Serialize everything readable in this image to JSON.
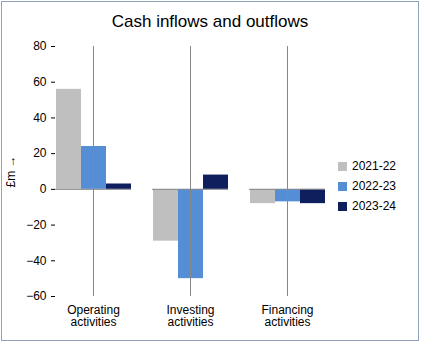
{
  "chart_data": {
    "type": "bar",
    "title": "Cash inflows and outflows",
    "ylabel": "£m",
    "categories": [
      "Operating activities",
      "Investing activities",
      "Financing activities"
    ],
    "series": [
      {
        "name": "2021-22",
        "color": "#BFBFBF",
        "values": [
          56,
          -29,
          -8
        ]
      },
      {
        "name": "2022-23",
        "color": "#558ED5",
        "values": [
          24,
          -50,
          -7
        ]
      },
      {
        "name": "2023-24",
        "color": "#0D1F5C",
        "values": [
          3,
          8,
          -8
        ]
      }
    ],
    "ylim": [
      -60,
      80
    ],
    "yticks": [
      -60,
      -40,
      -20,
      0,
      20,
      40,
      60,
      80
    ],
    "grid": false,
    "legend": "right"
  }
}
